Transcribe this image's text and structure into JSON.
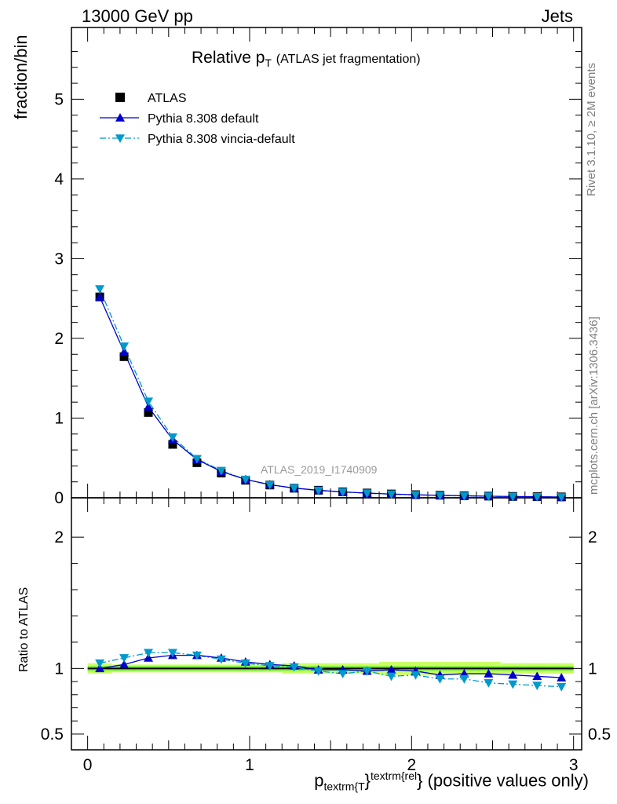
{
  "header": {
    "left": "13000 GeV pp",
    "right": "Jets"
  },
  "title": {
    "main": "Relative p",
    "sub": "T",
    "extra": "(ATLAS jet fragmentation)"
  },
  "side_labels": {
    "rivet": "Rivet 3.1.10, ≥ 2M events",
    "mcplots": "mcplots.cern.ch [arXiv:1306.3436]"
  },
  "analysis_tag": "ATLAS_2019_I1740909",
  "axes": {
    "ylabel_main": "fraction/bin",
    "ylabel_ratio": "Ratio to ATLAS",
    "xlabel_main": "p",
    "xlabel_sub": "textrm{T",
    "xlabel_sup": "textrm{rel",
    "xlabel_tail": "} (positive values only)"
  },
  "colors": {
    "data": "#000000",
    "default": "#0000cc",
    "vincia": "#0099cc",
    "band_inner": "#00cc00",
    "band_outer": "#ccff66"
  },
  "chart_data": [
    {
      "type": "line",
      "panel": "main",
      "x": [
        0.075,
        0.225,
        0.375,
        0.525,
        0.675,
        0.825,
        0.975,
        1.125,
        1.275,
        1.425,
        1.575,
        1.725,
        1.875,
        2.025,
        2.175,
        2.325,
        2.475,
        2.625,
        2.775,
        2.925
      ],
      "xlim": [
        -0.1,
        3.05
      ],
      "ylim": [
        0,
        5.9
      ],
      "yticks": [
        0,
        1,
        2,
        3,
        4,
        5
      ],
      "xticks": [
        0,
        1,
        2,
        3
      ],
      "series": [
        {
          "name": "ATLAS",
          "style": "square-marker",
          "values": [
            2.52,
            1.77,
            1.07,
            0.67,
            0.44,
            0.31,
            0.22,
            0.16,
            0.12,
            0.095,
            0.075,
            0.06,
            0.048,
            0.039,
            0.032,
            0.026,
            0.021,
            0.017,
            0.014,
            0.011
          ]
        },
        {
          "name": "Pythia 8.308 default",
          "style": "solid-triangle-up",
          "values": [
            2.52,
            1.83,
            1.14,
            0.73,
            0.48,
            0.33,
            0.23,
            0.165,
            0.122,
            0.094,
            0.074,
            0.059,
            0.047,
            0.038,
            0.031,
            0.025,
            0.02,
            0.016,
            0.013,
            0.01
          ]
        },
        {
          "name": "Pythia 8.308 vincia-default",
          "style": "dashdot-triangle-down",
          "values": [
            2.62,
            1.9,
            1.21,
            0.76,
            0.49,
            0.34,
            0.23,
            0.162,
            0.121,
            0.092,
            0.072,
            0.057,
            0.045,
            0.036,
            0.029,
            0.023,
            0.019,
            0.015,
            0.012,
            0.0095
          ]
        }
      ]
    },
    {
      "type": "line",
      "panel": "ratio",
      "x": [
        0.075,
        0.225,
        0.375,
        0.525,
        0.675,
        0.825,
        0.975,
        1.125,
        1.275,
        1.425,
        1.575,
        1.725,
        1.875,
        2.025,
        2.175,
        2.325,
        2.475,
        2.625,
        2.775,
        2.925
      ],
      "xlim": [
        -0.1,
        3.05
      ],
      "ylim": [
        0.38,
        2.3
      ],
      "yticks": [
        0.5,
        1,
        2
      ],
      "xticks": [
        0,
        1,
        2,
        3
      ],
      "band": {
        "inner_half_width": 0.02,
        "outer_half_width": [
          0.04,
          0.03,
          0.03,
          0.03,
          0.03,
          0.03,
          0.03,
          0.03,
          0.04,
          0.04,
          0.04,
          0.04,
          0.05,
          0.05,
          0.05,
          0.05,
          0.05,
          0.04,
          0.04,
          0.04
        ]
      },
      "series": [
        {
          "name": "Pythia 8.308 default",
          "style": "solid-triangle-up",
          "values": [
            1.0,
            1.03,
            1.08,
            1.1,
            1.1,
            1.08,
            1.05,
            1.03,
            1.02,
            0.99,
            0.99,
            0.98,
            0.99,
            0.98,
            0.95,
            0.96,
            0.96,
            0.95,
            0.94,
            0.93
          ]
        },
        {
          "name": "Pythia 8.308 vincia-default",
          "style": "dashdot-triangle-down",
          "values": [
            1.04,
            1.08,
            1.12,
            1.12,
            1.1,
            1.07,
            1.04,
            1.02,
            1.01,
            0.98,
            0.96,
            0.98,
            0.94,
            0.95,
            0.92,
            0.92,
            0.89,
            0.88,
            0.87,
            0.86
          ]
        }
      ]
    }
  ]
}
